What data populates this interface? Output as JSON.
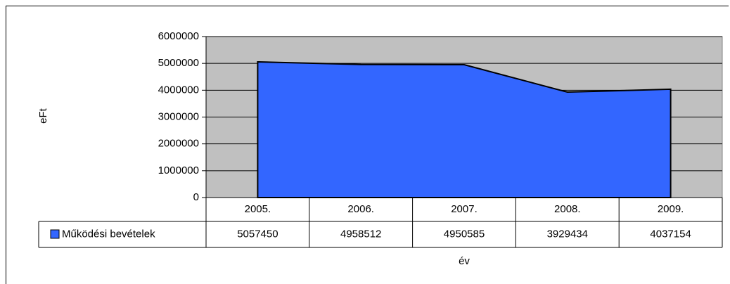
{
  "chart_data": {
    "type": "area",
    "x_label": "év",
    "y_label": "eFt",
    "categories": [
      "2005.",
      "2006.",
      "2007.",
      "2008.",
      "2009."
    ],
    "series": [
      {
        "name": "Működési bevételek",
        "color": "#3366ff",
        "values": [
          5057450,
          4958512,
          4950585,
          3929434,
          4037154
        ]
      }
    ],
    "ylim": [
      0,
      6000000
    ],
    "yticks": [
      0,
      1000000,
      2000000,
      3000000,
      4000000,
      5000000,
      6000000
    ],
    "grid": true,
    "data_table": true
  }
}
